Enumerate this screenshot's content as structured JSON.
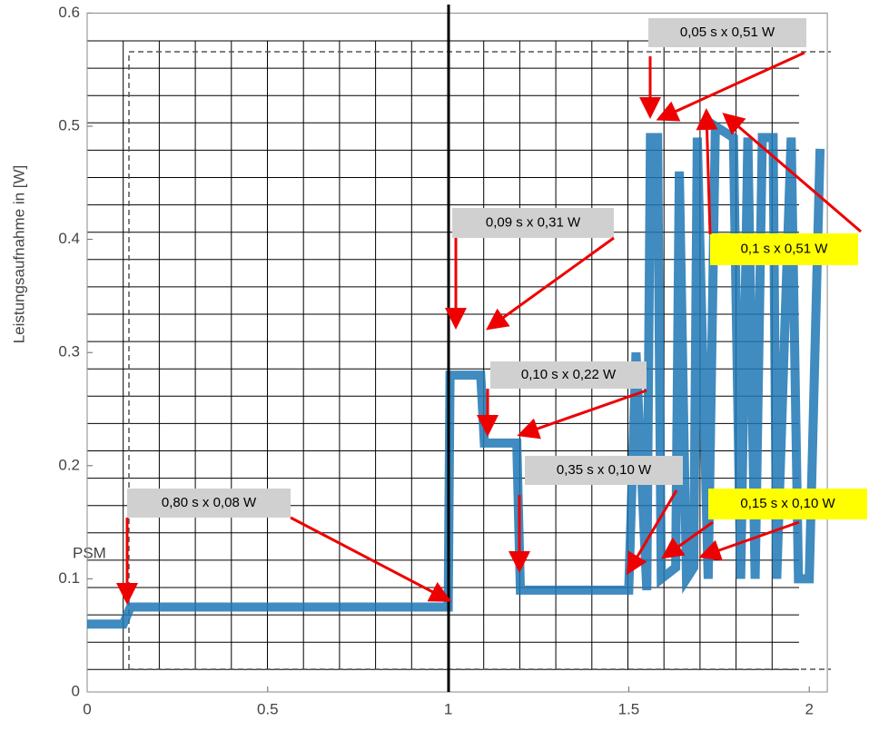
{
  "chart_data": {
    "type": "line",
    "ylabel": "Leistungsaufnahme in [W]",
    "xlim": [
      0,
      2.05
    ],
    "ylim": [
      0,
      0.6
    ],
    "xticks": [
      0,
      0.5,
      1,
      1.5,
      2
    ],
    "yticks": [
      0,
      0.1,
      0.2,
      0.3,
      0.4,
      0.5,
      0.6
    ],
    "series": [
      {
        "color": "#1f77b4",
        "x": [
          0,
          0.1,
          0.12,
          1.0,
          1.005,
          1.09,
          1.1,
          1.19,
          1.2,
          1.5,
          1.52,
          1.55,
          1.56,
          1.58,
          1.59,
          1.63,
          1.64,
          1.66,
          1.68,
          1.69,
          1.72,
          1.74,
          1.79,
          1.81,
          1.83,
          1.85,
          1.87,
          1.9,
          1.91,
          1.93,
          1.95,
          1.97,
          2.0,
          2.03
        ],
        "values": [
          0.06,
          0.06,
          0.075,
          0.075,
          0.28,
          0.28,
          0.22,
          0.22,
          0.09,
          0.09,
          0.3,
          0.09,
          0.49,
          0.49,
          0.1,
          0.11,
          0.46,
          0.1,
          0.11,
          0.49,
          0.1,
          0.5,
          0.49,
          0.1,
          0.49,
          0.1,
          0.49,
          0.49,
          0.1,
          0.3,
          0.49,
          0.1,
          0.1,
          0.48
        ]
      }
    ],
    "region_label": "PSM",
    "annotations": [
      {
        "text": "0,80 s x 0,08 W",
        "background": "#d0d0d0"
      },
      {
        "text": "0,09 s x 0,31 W",
        "background": "#d0d0d0"
      },
      {
        "text": "0,10 s x 0,22 W",
        "background": "#d0d0d0"
      },
      {
        "text": "0,35 s x 0,10 W",
        "background": "#d0d0d0"
      },
      {
        "text": "0,15 s x 0,10 W",
        "background": "#ffff00"
      },
      {
        "text": "0,05 s x 0,51 W",
        "background": "#d0d0d0"
      },
      {
        "text": "0,1 s x 0,51 W",
        "background": "#ffff00"
      }
    ]
  }
}
